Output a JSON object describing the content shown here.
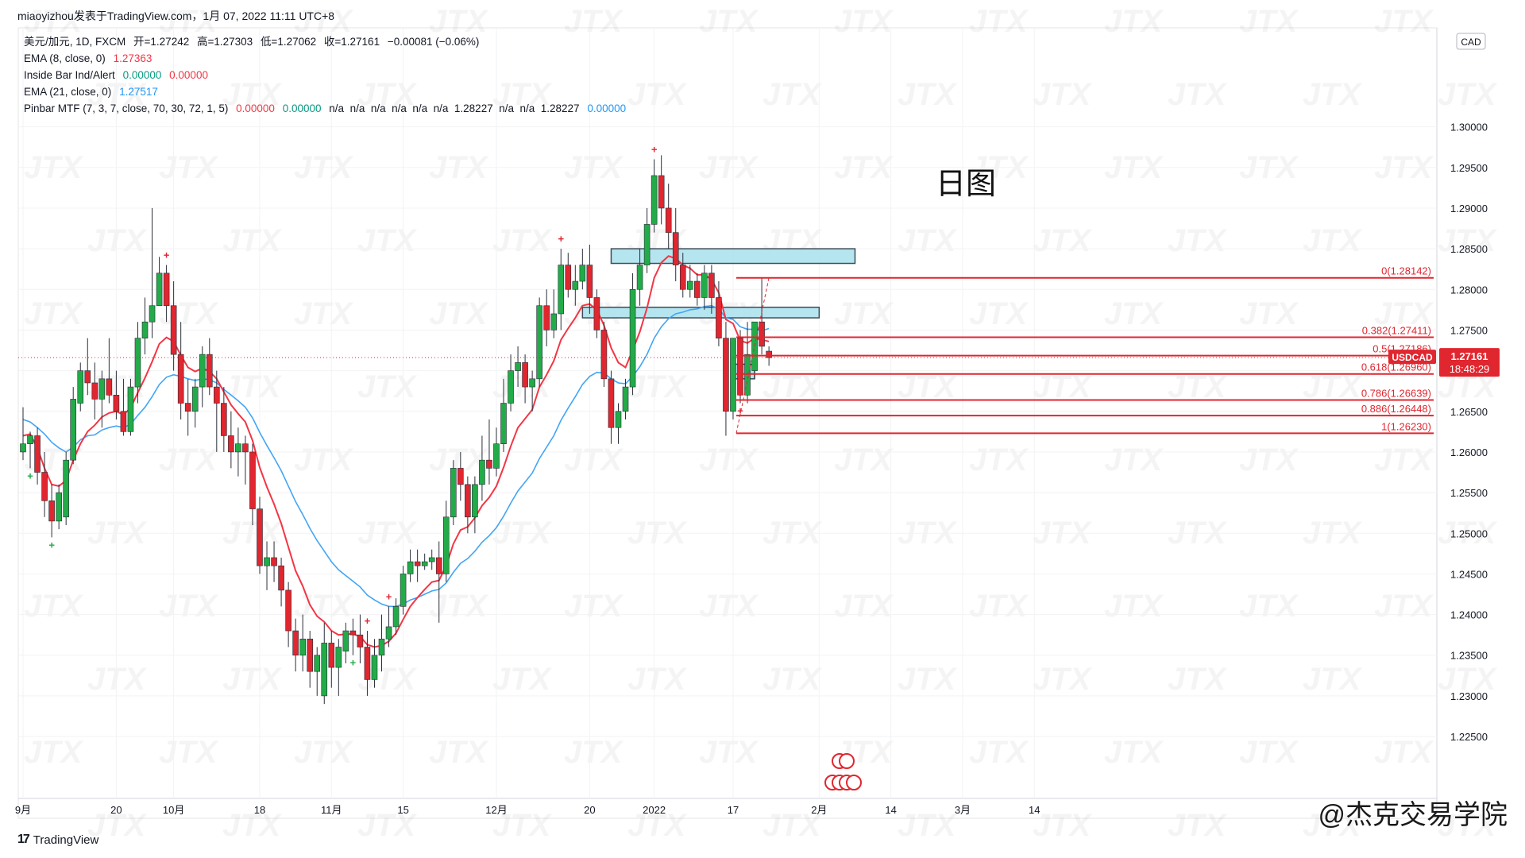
{
  "header": {
    "text": "miaoyizhou发表于TradingView.com，1月 07, 2022 11:11 UTC+8"
  },
  "legend": {
    "main": {
      "title": "美元/加元, 1D, FXCM",
      "open": "开=1.27242",
      "high": "高=1.27303",
      "low": "低=1.27062",
      "close": "收=1.27161",
      "change": "−0.00081 (−0.06%)"
    },
    "ema8": {
      "label": "EMA (8, close, 0)",
      "value": "1.27363"
    },
    "inside_bar": {
      "label": "Inside Bar Ind/Alert",
      "v1": "0.00000",
      "v2": "0.00000"
    },
    "ema21": {
      "label": "EMA (21, close, 0)",
      "value": "1.27517"
    },
    "pinbar": {
      "label": "Pinbar MTF (7, 3, 7, close, 70, 30, 72, 1, 5)",
      "v1": "0.00000",
      "v2": "0.00000",
      "rest": "n/a  n/a  n/a  n/a  n/a  n/a  1.28227  n/a  n/a  1.28227",
      "v_last": "0.00000"
    }
  },
  "annotation_title": "日图",
  "currency": "CAD",
  "price_badge": {
    "symbol": "USDCAD",
    "price": "1.27161",
    "countdown": "18:48:29"
  },
  "footer": {
    "brand": "TradingView",
    "credit": "@杰克交易学院"
  },
  "colors": {
    "up": "#22ab48",
    "down": "#e0262f",
    "ema8": "#f23645",
    "ema21": "#42a5f5",
    "fib": "#e0262f",
    "zone_fill": "#a8e1ec",
    "zone_border": "#3c4b57"
  },
  "chart_data": {
    "type": "candlestick",
    "symbol": "USDCAD",
    "timeframe": "1D",
    "y_range": [
      1.221,
      1.307
    ],
    "y_ticks": [
      "1.30000",
      "1.29500",
      "1.29000",
      "1.28500",
      "1.28000",
      "1.27500",
      "1.27000",
      "1.26500",
      "1.26000",
      "1.25500",
      "1.25000",
      "1.24500",
      "1.24000",
      "1.23500",
      "1.23000",
      "1.22500"
    ],
    "x_ticks": [
      {
        "label": "9月",
        "i": 0
      },
      {
        "label": "20",
        "i": 13
      },
      {
        "label": "10月",
        "i": 21
      },
      {
        "label": "18",
        "i": 33
      },
      {
        "label": "11月",
        "i": 43
      },
      {
        "label": "15",
        "i": 53
      },
      {
        "label": "12月",
        "i": 66
      },
      {
        "label": "20",
        "i": 79
      },
      {
        "label": "2022",
        "i": 88
      },
      {
        "label": "17",
        "i": 99
      },
      {
        "label": "2月",
        "i": 111
      },
      {
        "label": "14",
        "i": 121
      },
      {
        "label": "3月",
        "i": 131
      },
      {
        "label": "14",
        "i": 141
      }
    ],
    "candles": [
      [
        1.26,
        1.2655,
        1.259,
        1.261
      ],
      [
        1.261,
        1.2625,
        1.258,
        1.262
      ],
      [
        1.262,
        1.263,
        1.256,
        1.2575
      ],
      [
        1.2575,
        1.26,
        1.252,
        1.254
      ],
      [
        1.254,
        1.256,
        1.2495,
        1.2515
      ],
      [
        1.2515,
        1.256,
        1.2505,
        1.255
      ],
      [
        1.252,
        1.26,
        1.251,
        1.259
      ],
      [
        1.259,
        1.268,
        1.2585,
        1.2665
      ],
      [
        1.266,
        1.271,
        1.265,
        1.27
      ],
      [
        1.27,
        1.274,
        1.267,
        1.2685
      ],
      [
        1.2685,
        1.271,
        1.264,
        1.2665
      ],
      [
        1.2665,
        1.27,
        1.263,
        1.269
      ],
      [
        1.269,
        1.274,
        1.266,
        1.267
      ],
      [
        1.267,
        1.27,
        1.264,
        1.265
      ],
      [
        1.265,
        1.269,
        1.262,
        1.2625
      ],
      [
        1.2625,
        1.269,
        1.262,
        1.268
      ],
      [
        1.268,
        1.276,
        1.266,
        1.274
      ],
      [
        1.274,
        1.279,
        1.272,
        1.276
      ],
      [
        1.276,
        1.29,
        1.274,
        1.278
      ],
      [
        1.278,
        1.284,
        1.278,
        1.282
      ],
      [
        1.282,
        1.283,
        1.276,
        1.278
      ],
      [
        1.278,
        1.281,
        1.27,
        1.272
      ],
      [
        1.272,
        1.276,
        1.264,
        1.266
      ],
      [
        1.266,
        1.269,
        1.262,
        1.265
      ],
      [
        1.265,
        1.269,
        1.263,
        1.268
      ],
      [
        1.268,
        1.273,
        1.2655,
        1.272
      ],
      [
        1.272,
        1.274,
        1.267,
        1.268
      ],
      [
        1.268,
        1.27,
        1.26,
        1.266
      ],
      [
        1.266,
        1.268,
        1.26,
        1.262
      ],
      [
        1.262,
        1.265,
        1.258,
        1.26
      ],
      [
        1.26,
        1.263,
        1.257,
        1.261
      ],
      [
        1.261,
        1.262,
        1.256,
        1.26
      ],
      [
        1.26,
        1.261,
        1.251,
        1.253
      ],
      [
        1.253,
        1.2545,
        1.245,
        1.246
      ],
      [
        1.246,
        1.249,
        1.243,
        1.247
      ],
      [
        1.247,
        1.249,
        1.244,
        1.246
      ],
      [
        1.246,
        1.247,
        1.241,
        1.243
      ],
      [
        1.243,
        1.244,
        1.236,
        1.238
      ],
      [
        1.238,
        1.2395,
        1.233,
        1.235
      ],
      [
        1.235,
        1.24,
        1.233,
        1.237
      ],
      [
        1.237,
        1.238,
        1.231,
        1.233
      ],
      [
        1.233,
        1.236,
        1.23,
        1.235
      ],
      [
        1.23,
        1.239,
        1.229,
        1.2365
      ],
      [
        1.2365,
        1.238,
        1.231,
        1.2335
      ],
      [
        1.2335,
        1.237,
        1.23,
        1.236
      ],
      [
        1.2355,
        1.239,
        1.234,
        1.238
      ],
      [
        1.238,
        1.2395,
        1.235,
        1.2375
      ],
      [
        1.2375,
        1.24,
        1.234,
        1.236
      ],
      [
        1.236,
        1.238,
        1.23,
        1.232
      ],
      [
        1.232,
        1.237,
        1.231,
        1.235
      ],
      [
        1.235,
        1.24,
        1.233,
        1.237
      ],
      [
        1.237,
        1.241,
        1.236,
        1.2385
      ],
      [
        1.2385,
        1.242,
        1.2375,
        1.241
      ],
      [
        1.241,
        1.246,
        1.24,
        1.245
      ],
      [
        1.245,
        1.248,
        1.244,
        1.2465
      ],
      [
        1.2465,
        1.248,
        1.244,
        1.246
      ],
      [
        1.246,
        1.2475,
        1.2455,
        1.2465
      ],
      [
        1.2465,
        1.248,
        1.2455,
        1.247
      ],
      [
        1.247,
        1.249,
        1.239,
        1.245
      ],
      [
        1.245,
        1.254,
        1.244,
        1.252
      ],
      [
        1.252,
        1.259,
        1.251,
        1.258
      ],
      [
        1.258,
        1.26,
        1.254,
        1.256
      ],
      [
        1.256,
        1.257,
        1.25,
        1.252
      ],
      [
        1.252,
        1.257,
        1.25,
        1.256
      ],
      [
        1.256,
        1.262,
        1.254,
        1.259
      ],
      [
        1.259,
        1.264,
        1.256,
        1.258
      ],
      [
        1.258,
        1.263,
        1.257,
        1.261
      ],
      [
        1.261,
        1.269,
        1.26,
        1.266
      ],
      [
        1.266,
        1.272,
        1.265,
        1.27
      ],
      [
        1.27,
        1.273,
        1.268,
        1.271
      ],
      [
        1.271,
        1.272,
        1.266,
        1.268
      ],
      [
        1.268,
        1.27,
        1.265,
        1.269
      ],
      [
        1.269,
        1.279,
        1.268,
        1.278
      ],
      [
        1.278,
        1.28,
        1.273,
        1.275
      ],
      [
        1.275,
        1.28,
        1.274,
        1.277
      ],
      [
        1.277,
        1.285,
        1.275,
        1.283
      ],
      [
        1.283,
        1.2845,
        1.279,
        1.28
      ],
      [
        1.28,
        1.283,
        1.278,
        1.281
      ],
      [
        1.281,
        1.285,
        1.28,
        1.283
      ],
      [
        1.283,
        1.2855,
        1.277,
        1.279
      ],
      [
        1.279,
        1.28,
        1.274,
        1.275
      ],
      [
        1.275,
        1.276,
        1.268,
        1.269
      ],
      [
        1.269,
        1.27,
        1.261,
        1.263
      ],
      [
        1.263,
        1.266,
        1.261,
        1.265
      ],
      [
        1.265,
        1.269,
        1.264,
        1.268
      ],
      [
        1.268,
        1.282,
        1.267,
        1.28
      ],
      [
        1.28,
        1.285,
        1.278,
        1.283
      ],
      [
        1.283,
        1.29,
        1.282,
        1.288
      ],
      [
        1.288,
        1.296,
        1.287,
        1.294
      ],
      [
        1.294,
        1.2965,
        1.288,
        1.29
      ],
      [
        1.29,
        1.293,
        1.285,
        1.287
      ],
      [
        1.287,
        1.29,
        1.281,
        1.283
      ],
      [
        1.283,
        1.2845,
        1.279,
        1.28
      ],
      [
        1.28,
        1.283,
        1.279,
        1.281
      ],
      [
        1.281,
        1.282,
        1.278,
        1.279
      ],
      [
        1.279,
        1.283,
        1.2775,
        1.282
      ],
      [
        1.282,
        1.283,
        1.277,
        1.279
      ],
      [
        1.279,
        1.281,
        1.273,
        1.274
      ],
      [
        1.274,
        1.276,
        1.262,
        1.265
      ],
      [
        1.265,
        1.274,
        1.264,
        1.274
      ],
      [
        1.274,
        1.275,
        1.266,
        1.267
      ],
      [
        1.267,
        1.276,
        1.266,
        1.272
      ],
      [
        1.27,
        1.276,
        1.269,
        1.276
      ],
      [
        1.276,
        1.2814,
        1.272,
        1.273
      ],
      [
        1.2724,
        1.273,
        1.2706,
        1.2716
      ]
    ],
    "ema8": [
      1.262,
      1.2622,
      1.2605,
      1.258,
      1.256,
      1.2558,
      1.2565,
      1.259,
      1.261,
      1.2625,
      1.2633,
      1.2643,
      1.2648,
      1.265,
      1.2646,
      1.2654,
      1.2673,
      1.2691,
      1.2711,
      1.2733,
      1.2741,
      1.2736,
      1.2719,
      1.2704,
      1.2699,
      1.2703,
      1.2699,
      1.269,
      1.2674,
      1.2658,
      1.2647,
      1.2637,
      1.2614,
      1.2581,
      1.2557,
      1.2536,
      1.2512,
      1.2483,
      1.2454,
      1.2435,
      1.2412,
      1.2398,
      1.2391,
      1.238,
      1.2375,
      1.2376,
      1.2376,
      1.2373,
      1.2363,
      1.236,
      1.2362,
      1.2367,
      1.2377,
      1.2394,
      1.241,
      1.2421,
      1.2431,
      1.244,
      1.2442,
      1.246,
      1.2487,
      1.2504,
      1.2508,
      1.2519,
      1.2534,
      1.2544,
      1.2558,
      1.2581,
      1.2607,
      1.263,
      1.2641,
      1.2652,
      1.268,
      1.2695,
      1.2712,
      1.2738,
      1.2752,
      1.2765,
      1.278,
      1.2782,
      1.2775,
      1.2756,
      1.2728,
      1.271,
      1.2704,
      1.2725,
      1.2748,
      1.2777,
      1.2814,
      1.2833,
      1.2841,
      1.2838,
      1.283,
      1.2826,
      1.2818,
      1.2818,
      1.2812,
      1.2796,
      1.2763,
      1.2758,
      1.2737,
      1.2734,
      1.274,
      1.2738,
      1.2736
    ],
    "ema21": [
      1.264,
      1.2637,
      1.263,
      1.2622,
      1.2612,
      1.2605,
      1.26,
      1.2606,
      1.2615,
      1.262,
      1.2621,
      1.2627,
      1.263,
      1.2632,
      1.263,
      1.2634,
      1.2645,
      1.2655,
      1.2668,
      1.2683,
      1.2692,
      1.2695,
      1.2693,
      1.269,
      1.2688,
      1.269,
      1.2689,
      1.2685,
      1.2677,
      1.267,
      1.2663,
      1.2655,
      1.2642,
      1.2624,
      1.2608,
      1.2593,
      1.2577,
      1.2558,
      1.2539,
      1.2523,
      1.2506,
      1.2491,
      1.2478,
      1.2465,
      1.2455,
      1.2448,
      1.2441,
      1.2434,
      1.2424,
      1.2418,
      1.2413,
      1.241,
      1.241,
      1.2413,
      1.2418,
      1.2421,
      1.2425,
      1.2429,
      1.2431,
      1.2439,
      1.2452,
      1.2463,
      1.2469,
      1.2478,
      1.2489,
      1.2497,
      1.2507,
      1.2521,
      1.2537,
      1.2552,
      1.2563,
      1.2574,
      1.2592,
      1.2606,
      1.262,
      1.2639,
      1.2654,
      1.2668,
      1.2683,
      1.2693,
      1.2698,
      1.2697,
      1.269,
      1.2685,
      1.2684,
      1.2693,
      1.2705,
      1.272,
      1.274,
      1.2754,
      1.2764,
      1.277,
      1.2772,
      1.2775,
      1.2776,
      1.2779,
      1.278,
      1.2776,
      1.2765,
      1.2763,
      1.2754,
      1.2751,
      1.2751,
      1.2749,
      1.2752
    ],
    "fib_levels": [
      {
        "label": "0(1.28142)",
        "price": 1.28142
      },
      {
        "label": "0.382(1.27411)",
        "price": 1.27411
      },
      {
        "label": "0.5(1.27186)",
        "price": 1.27186
      },
      {
        "label": "0.618(1.26960)",
        "price": 1.2696
      },
      {
        "label": "0.786(1.26639)",
        "price": 1.26639
      },
      {
        "label": "0.886(1.26448)",
        "price": 1.26448
      },
      {
        "label": "1(1.26230)",
        "price": 1.2623
      }
    ],
    "zones": [
      {
        "from_i": 82,
        "to_i": 116,
        "top": 1.285,
        "bottom": 1.2832
      },
      {
        "from_i": 78,
        "to_i": 111,
        "top": 1.2778,
        "bottom": 1.2765
      },
      {
        "from_i": 99,
        "to_i": 102,
        "top": 1.2708,
        "bottom": 1.269
      }
    ],
    "pinbar_marks": [
      {
        "i": 1,
        "side": "below",
        "kind": "bull"
      },
      {
        "i": 4,
        "side": "below",
        "kind": "bull"
      },
      {
        "i": 20,
        "side": "above",
        "kind": "bear"
      },
      {
        "i": 46,
        "side": "below",
        "kind": "bull"
      },
      {
        "i": 48,
        "side": "above",
        "kind": "bear"
      },
      {
        "i": 51,
        "side": "above",
        "kind": "bear"
      },
      {
        "i": 75,
        "side": "above",
        "kind": "bear"
      },
      {
        "i": 88,
        "side": "above",
        "kind": "bear"
      },
      {
        "i": 100,
        "side": "below",
        "kind": "bear"
      }
    ],
    "last_price": 1.27161
  }
}
